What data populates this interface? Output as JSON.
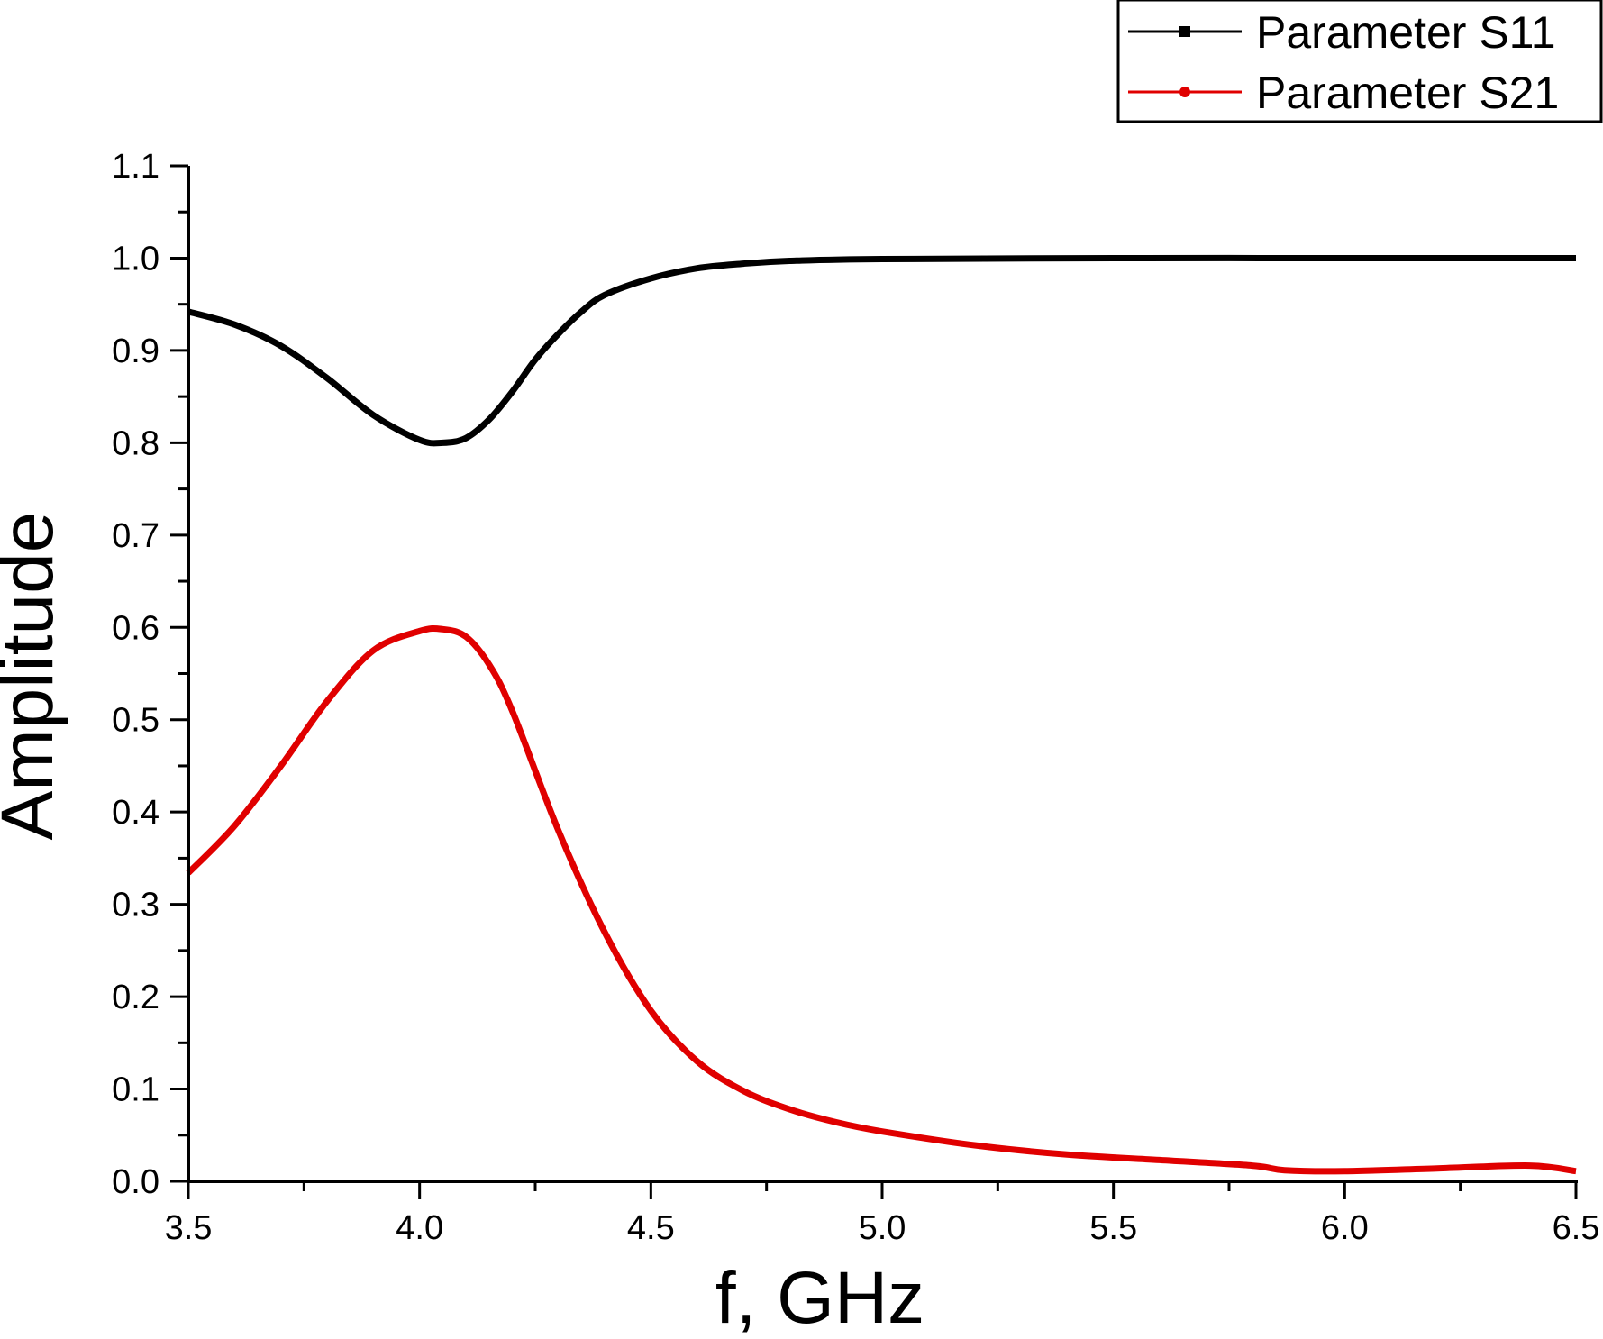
{
  "chart_data": {
    "type": "line",
    "title": "",
    "xlabel": "f, GHz",
    "ylabel": "Amplitude",
    "xlim": [
      3.5,
      6.5
    ],
    "ylim": [
      0.0,
      1.1
    ],
    "grid": false,
    "legend_position": "top-right",
    "x_ticks": [
      3.5,
      4.0,
      4.5,
      5.0,
      5.5,
      6.0,
      6.5
    ],
    "x_tick_labels": [
      "3.5",
      "4.0",
      "4.5",
      "5.0",
      "5.5",
      "6.0",
      "6.5"
    ],
    "y_ticks": [
      0.0,
      0.1,
      0.2,
      0.3,
      0.4,
      0.5,
      0.6,
      0.7,
      0.8,
      0.9,
      1.0,
      1.1
    ],
    "y_tick_labels": [
      "0.0",
      "0.1",
      "0.2",
      "0.3",
      "0.4",
      "0.5",
      "0.6",
      "0.7",
      "0.8",
      "0.9",
      "1.0",
      "1.1"
    ],
    "series": [
      {
        "name": "Parameter S11",
        "color": "#000000",
        "marker": "square",
        "x": [
          3.5,
          3.6,
          3.7,
          3.8,
          3.9,
          4.0,
          4.05,
          4.1,
          4.15,
          4.2,
          4.25,
          4.3,
          4.35,
          4.4,
          4.5,
          4.6,
          4.7,
          4.8,
          5.0,
          5.5,
          6.0,
          6.5
        ],
        "values": [
          0.942,
          0.928,
          0.905,
          0.87,
          0.83,
          0.803,
          0.8,
          0.805,
          0.825,
          0.855,
          0.89,
          0.918,
          0.942,
          0.96,
          0.978,
          0.989,
          0.994,
          0.997,
          0.999,
          1.0,
          1.0,
          1.0
        ]
      },
      {
        "name": "Parameter S21",
        "color": "#e00000",
        "marker": "circle",
        "x": [
          3.5,
          3.6,
          3.7,
          3.8,
          3.9,
          4.0,
          4.05,
          4.1,
          4.15,
          4.2,
          4.3,
          4.4,
          4.5,
          4.6,
          4.7,
          4.8,
          4.9,
          5.0,
          5.2,
          5.4,
          5.6,
          5.8,
          5.87,
          6.0,
          6.2,
          6.4,
          6.5
        ],
        "values": [
          0.334,
          0.385,
          0.45,
          0.52,
          0.575,
          0.596,
          0.598,
          0.59,
          0.56,
          0.51,
          0.38,
          0.27,
          0.185,
          0.13,
          0.098,
          0.078,
          0.064,
          0.054,
          0.039,
          0.029,
          0.023,
          0.017,
          0.012,
          0.011,
          0.014,
          0.017,
          0.011
        ]
      }
    ]
  }
}
